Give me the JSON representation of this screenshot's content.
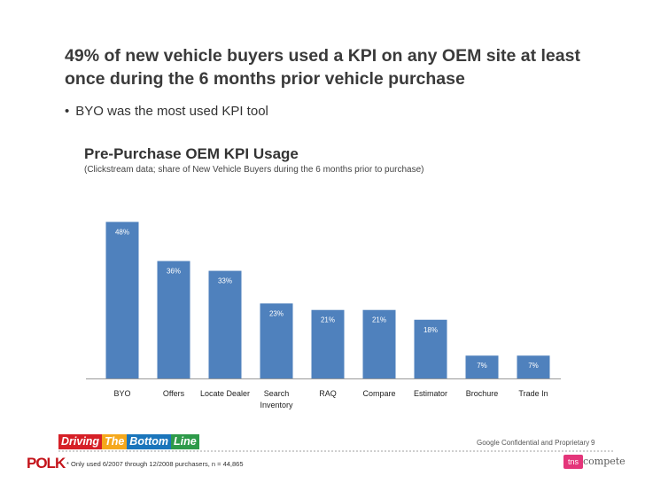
{
  "slide": {
    "title": "49% of new vehicle buyers used a KPI on any OEM site at least once during the 6 months prior vehicle purchase",
    "bullet": "BYO was the most used KPI tool",
    "bullet_marker": "•"
  },
  "chart_data": {
    "type": "bar",
    "title": "Pre-Purchase OEM KPI Usage",
    "subtitle": "(Clickstream data; share of New Vehicle Buyers during the 6 months prior to purchase)",
    "categories": [
      "BYO",
      "Offers",
      "Locate Dealer",
      "Search Inventory",
      "RAQ",
      "Compare",
      "Estimator",
      "Brochure",
      "Trade In"
    ],
    "category_lines": [
      [
        "BYO"
      ],
      [
        "Offers"
      ],
      [
        "Locate Dealer"
      ],
      [
        "Search",
        "Inventory"
      ],
      [
        "RAQ"
      ],
      [
        "Compare"
      ],
      [
        "Estimator"
      ],
      [
        "Brochure"
      ],
      [
        "Trade In"
      ]
    ],
    "values": [
      48,
      36,
      33,
      23,
      21,
      21,
      18,
      7,
      7
    ],
    "labels": [
      "48%",
      "36%",
      "33%",
      "23%",
      "21%",
      "21%",
      "18%",
      "7%",
      "7%"
    ],
    "ylim": [
      0,
      50
    ],
    "xlabel": "",
    "ylabel": "",
    "grid": false,
    "bar_color": "#4f81bd"
  },
  "footer": {
    "logo_segments": [
      "Driving",
      "The",
      "Bottom",
      "Line"
    ],
    "confidential": "Google Confidential and Proprietary",
    "page_number": "9",
    "polk_logo": "POLK",
    "footnote": "* Only used 6/2007 through 12/2008 purchasers, n = 44,865",
    "tns_logo": "tns",
    "compete_logo": "compete"
  }
}
